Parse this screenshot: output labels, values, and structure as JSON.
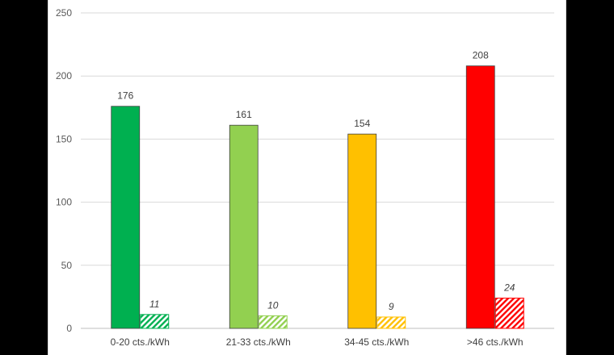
{
  "chart_data": {
    "type": "bar",
    "title": "",
    "xlabel": "",
    "ylabel": "",
    "ylim": [
      0,
      250
    ],
    "yticks": [
      0,
      50,
      100,
      150,
      200,
      250
    ],
    "grid": true,
    "legend": "none",
    "categories": [
      "0-20 cts./kWh",
      "21-33 cts./kWh",
      "34-45 cts./kWh",
      ">46 cts./kWh"
    ],
    "colors": [
      "#00b050",
      "#92d050",
      "#ffc000",
      "#ff0000"
    ],
    "series": [
      {
        "fill": "solid",
        "values": [
          176,
          161,
          154,
          208
        ]
      },
      {
        "fill": "hatched",
        "label_style": "italic",
        "values": [
          11,
          10,
          9,
          24
        ]
      }
    ]
  }
}
